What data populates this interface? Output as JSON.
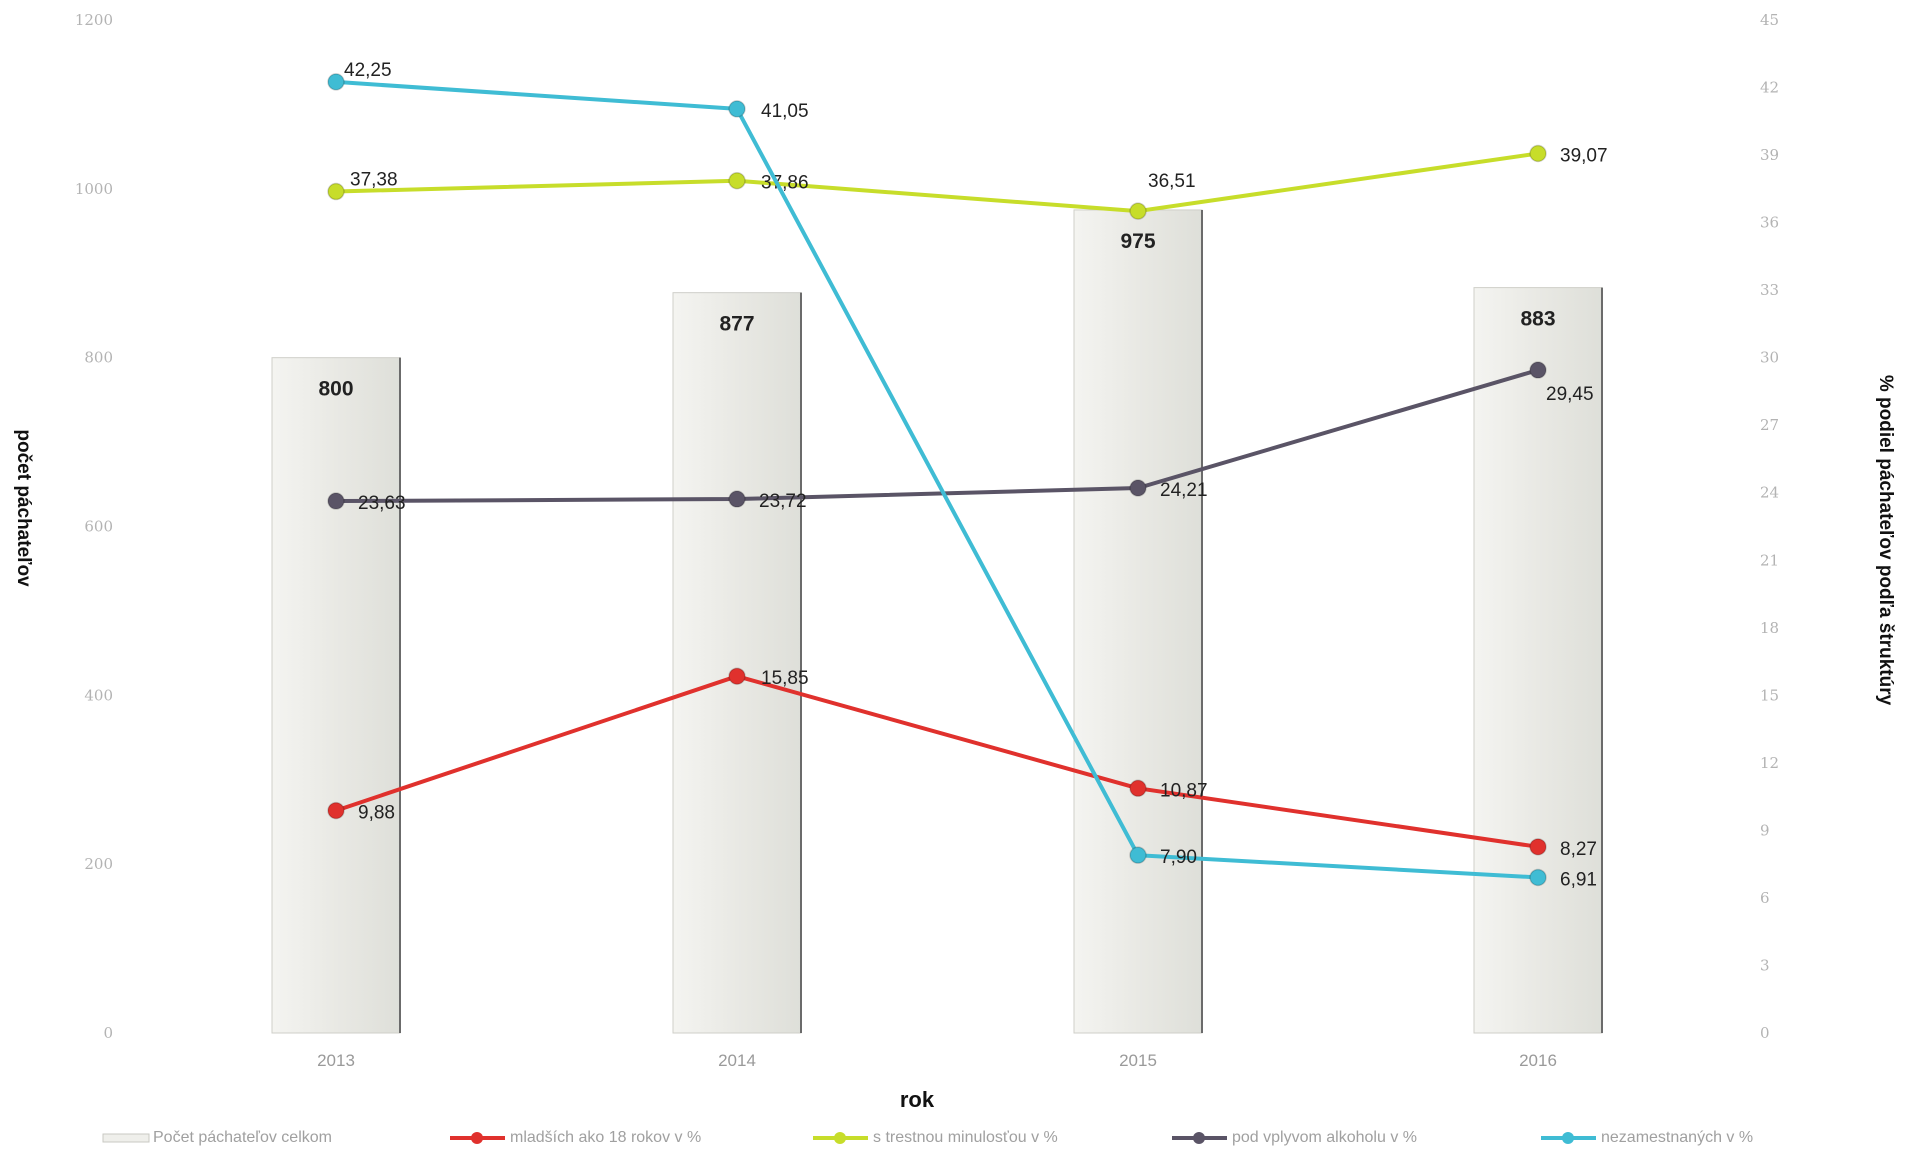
{
  "chart_data": {
    "type": "bar+line",
    "categories": [
      "2013",
      "2014",
      "2015",
      "2016"
    ],
    "xlabel": "rok",
    "ylabel_left": "počet páchateľov",
    "ylabel_right": "% podiel páchateľov podľa štruktúry",
    "ylim_left": [
      0,
      1200
    ],
    "yticks_left": [
      "0",
      "200",
      "400",
      "600",
      "800",
      "1000",
      "1200"
    ],
    "ylim_right": [
      0,
      45
    ],
    "yticks_right": [
      "0",
      "3",
      "6",
      "9",
      "12",
      "15",
      "18",
      "21",
      "24",
      "27",
      "30",
      "33",
      "36",
      "39",
      "42",
      "45"
    ],
    "bars": {
      "name": "Počet páchateľov celkom",
      "values": [
        800,
        877,
        975,
        883
      ],
      "labels": [
        "800",
        "877",
        "975",
        "883"
      ],
      "color": "#e9e9e4"
    },
    "series": [
      {
        "name": "mladších ako 18 rokov v %",
        "color": "#e0312d",
        "values": [
          9.88,
          15.85,
          10.87,
          8.27
        ],
        "labels": [
          "9,88",
          "15,85",
          "10,87",
          "8,27"
        ]
      },
      {
        "name": "s trestnou minulosťou v %",
        "color": "#c7dd2a",
        "values": [
          37.38,
          37.86,
          36.51,
          39.07
        ],
        "labels": [
          "37,38",
          "37,86",
          "36,51",
          "39,07"
        ]
      },
      {
        "name": "pod vplyvom alkoholu v %",
        "color": "#5a5466",
        "values": [
          23.63,
          23.72,
          24.21,
          29.45
        ],
        "labels": [
          "23,63",
          "23,72",
          "24,21",
          "29,45"
        ]
      },
      {
        "name": "nezamestnaných v %",
        "color": "#3fbcd4",
        "values": [
          42.25,
          41.05,
          7.9,
          6.91
        ],
        "labels": [
          "42,25",
          "41,05",
          "7,90",
          "6,91"
        ]
      }
    ],
    "legend": "bottom"
  }
}
